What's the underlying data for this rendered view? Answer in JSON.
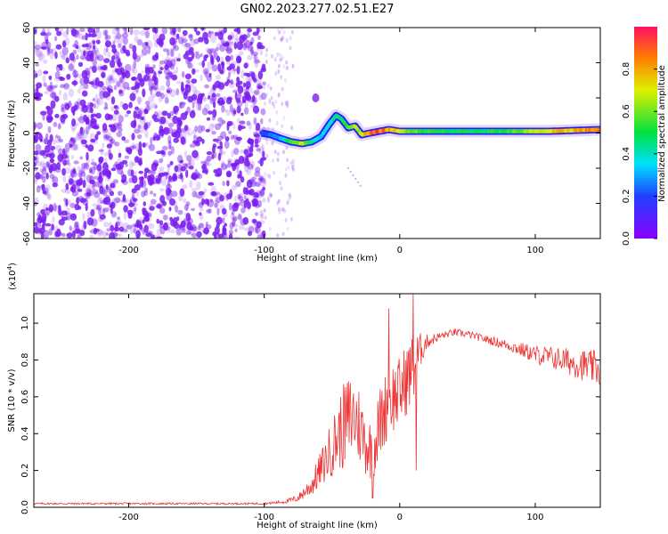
{
  "title": "GN02.2023.277.02.51.E27",
  "colors": {
    "spectrogram_noise": "#7a1cf0",
    "ridge_low": "#2020ff",
    "ridge_mid": "#00dd44",
    "ridge_high": "#ff2a1a",
    "snr_line": "#ee3333",
    "colorbar_stops": [
      "#8a00ff",
      "#2040ff",
      "#00e0ff",
      "#00e040",
      "#e0f000",
      "#ff8000",
      "#ff1060"
    ]
  },
  "chart_data": [
    {
      "type": "heatmap",
      "name": "spectrogram",
      "xlabel": "Height of straight line (km)",
      "ylabel": "Frequency (Hz)",
      "xlim": [
        -270,
        148
      ],
      "ylim": [
        -60,
        60
      ],
      "x_ticks": [
        -200,
        -100,
        0,
        100
      ],
      "x_tick_labels": [
        "-200",
        "-100",
        "0",
        "100"
      ],
      "y_ticks": [
        60,
        40,
        20,
        0,
        -20,
        -40,
        -60
      ],
      "y_tick_labels": [
        "60",
        "40",
        "20",
        "0",
        "-20",
        "-40",
        "-60"
      ],
      "noise_region_x": [
        -270,
        -100
      ],
      "ridge": {
        "x": [
          -102,
          -95,
          -88,
          -80,
          -72,
          -65,
          -58,
          -52,
          -47,
          -43,
          -38,
          -33,
          -28,
          -22,
          -15,
          -8,
          0,
          20,
          50,
          80,
          110,
          148
        ],
        "freq": [
          0,
          -1,
          -3,
          -5,
          -6,
          -5,
          -2,
          5,
          10,
          8,
          3,
          4,
          -1,
          0,
          1,
          2,
          1,
          1,
          1,
          1,
          1,
          2
        ],
        "amplitude": [
          0.2,
          0.25,
          0.3,
          0.55,
          0.7,
          0.45,
          0.35,
          0.4,
          0.45,
          0.5,
          0.55,
          0.65,
          0.75,
          0.9,
          0.95,
          0.85,
          0.7,
          0.55,
          0.5,
          0.55,
          0.75,
          0.9
        ]
      },
      "colorbar": {
        "label": "Normalized spectral amplitude",
        "range": [
          0.0,
          1.0
        ],
        "ticks": [
          0.0,
          0.2,
          0.4,
          0.6,
          0.8
        ],
        "tick_labels": [
          "0.0",
          "0.2",
          "0.4",
          "0.6",
          "0.8"
        ]
      }
    },
    {
      "type": "line",
      "name": "snr",
      "xlabel": "Height of straight line (km)",
      "ylabel": "SNR (10 * v/v)",
      "y_multiplier": "(x10",
      "y_multiplier_exp": "4",
      "y_multiplier_close": ")",
      "xlim": [
        -270,
        148
      ],
      "ylim": [
        0,
        1.16
      ],
      "x_ticks": [
        -200,
        -100,
        0,
        100
      ],
      "x_tick_labels": [
        "-200",
        "-100",
        "0",
        "100"
      ],
      "y_ticks": [
        0.0,
        0.2,
        0.4,
        0.6,
        0.8,
        1.0
      ],
      "y_tick_labels": [
        "0.0",
        "0.2",
        "0.4",
        "0.6",
        "0.8",
        "1.0"
      ],
      "envelope": {
        "x": [
          -270,
          -100,
          -85,
          -75,
          -65,
          -55,
          -45,
          -40,
          -35,
          -30,
          -25,
          -20,
          -15,
          -10,
          -5,
          0,
          5,
          10,
          15,
          20,
          30,
          40,
          50,
          60,
          80,
          100,
          120,
          148
        ],
        "y": [
          0.02,
          0.02,
          0.03,
          0.05,
          0.12,
          0.25,
          0.4,
          0.45,
          0.5,
          0.45,
          0.35,
          0.3,
          0.45,
          0.55,
          0.6,
          0.62,
          0.7,
          0.75,
          0.85,
          0.9,
          0.93,
          0.95,
          0.94,
          0.92,
          0.88,
          0.83,
          0.8,
          0.75
        ],
        "noise": [
          0.005,
          0.005,
          0.01,
          0.02,
          0.06,
          0.12,
          0.2,
          0.25,
          0.25,
          0.22,
          0.18,
          0.16,
          0.2,
          0.2,
          0.2,
          0.2,
          0.2,
          0.2,
          0.1,
          0.04,
          0.02,
          0.02,
          0.02,
          0.02,
          0.03,
          0.05,
          0.07,
          0.1
        ]
      },
      "peaks": [
        {
          "x": -20,
          "y": 0.05
        },
        {
          "x": -8,
          "y": 1.08
        },
        {
          "x": 10,
          "y": 1.16
        },
        {
          "x": 12,
          "y": 0.2
        }
      ]
    }
  ]
}
